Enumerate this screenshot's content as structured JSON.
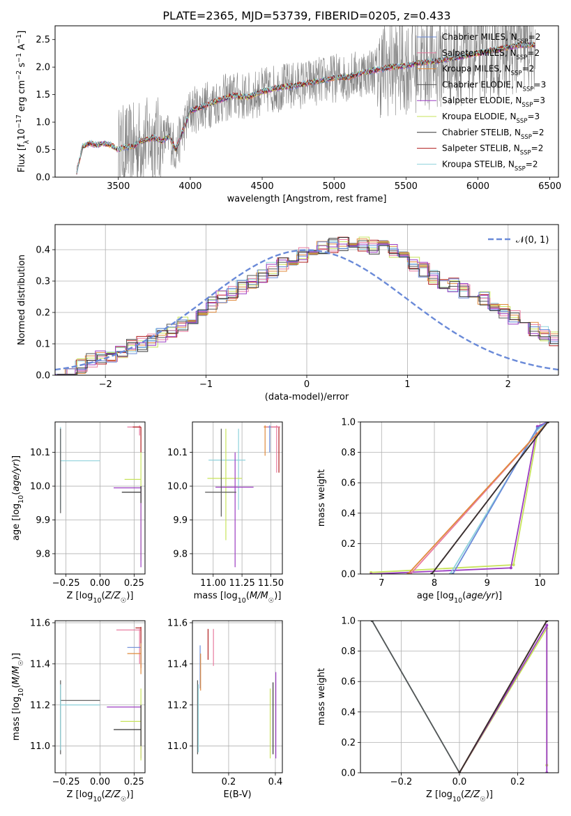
{
  "figure": {
    "title": "PLATE=2365, MJD=53739, FIBERID=0205, z=0.433",
    "colors": {
      "blue": "#6a8ad8",
      "pink": "#e87ba0",
      "orange": "#e08a3c",
      "darkgrey": "#555555",
      "purple": "#9b3cc2",
      "lime": "#c7e35a",
      "black": "#333333",
      "red": "#b01c1c",
      "cyan": "#8fd3dc",
      "spectrum": "#7f7f7f"
    }
  },
  "chart_data": [
    {
      "id": "spectrum",
      "type": "line",
      "xlabel": "wavelength [Angstrom, rest frame]",
      "ylabel": "Flux [f_λ 10^-17 erg cm^-2 s^-1 A^-1]",
      "xlim": [
        3060,
        6560
      ],
      "ylim": [
        0,
        2.75
      ],
      "xticks": [
        "3500",
        "4000",
        "4500",
        "5000",
        "5500",
        "6000",
        "6500"
      ],
      "yticks": [
        "0.0",
        "0.5",
        "1.0",
        "1.5",
        "2.0",
        "2.5"
      ],
      "legend": [
        "Chabrier MILES, N_SSP=2",
        "Salpeter MILES, N_SSP=2",
        "Kroupa MILES, N_SSP=2",
        "Chabrier ELODIE, N_SSP=3",
        "Salpeter ELODIE, N_SSP=3",
        "Kroupa ELODIE, N_SSP=3",
        "Chabrier STELIB, N_SSP=2",
        "Salpeter STELIB, N_SSP=2",
        "Kroupa STELIB, N_SSP=2"
      ],
      "legend_placement": "upper right",
      "model_trend": {
        "x": [
          3210,
          3250,
          3300,
          3350,
          3400,
          3450,
          3500,
          3550,
          3600,
          3650,
          3700,
          3750,
          3800,
          3850,
          3900,
          3950,
          4000,
          4100,
          4200,
          4300,
          4400,
          4500,
          4600,
          4700,
          4800,
          4900,
          5000,
          5100,
          5200,
          5300,
          5400,
          5500,
          5600,
          5700,
          5800,
          5900,
          6000,
          6100,
          6200,
          6300,
          6400
        ],
        "y": [
          0.1,
          0.55,
          0.62,
          0.58,
          0.62,
          0.58,
          0.5,
          0.55,
          0.55,
          0.65,
          0.68,
          0.72,
          0.65,
          0.75,
          0.5,
          0.85,
          1.2,
          1.3,
          1.4,
          1.48,
          1.45,
          1.55,
          1.62,
          1.65,
          1.7,
          1.75,
          1.8,
          1.82,
          1.9,
          1.95,
          2.0,
          2.02,
          2.08,
          2.1,
          2.15,
          2.2,
          2.25,
          2.3,
          2.35,
          2.4,
          2.4
        ]
      }
    },
    {
      "id": "residuals",
      "type": "line",
      "xlabel": "(data-model)/error",
      "ylabel": "Normed distribution",
      "xlim": [
        -2.5,
        2.5
      ],
      "ylim": [
        0,
        0.48
      ],
      "xticks": [
        "−2",
        "−1",
        "0",
        "1",
        "2"
      ],
      "yticks": [
        "0.0",
        "0.1",
        "0.2",
        "0.3",
        "0.4"
      ],
      "legend": [
        "𝒩(0, 1)"
      ],
      "legend_placement": "upper right",
      "bin_width": 0.1,
      "histogram_profile_bins_from_minus_2_5": [
        0.015,
        0.02,
        0.03,
        0.045,
        0.055,
        0.065,
        0.08,
        0.09,
        0.1,
        0.11,
        0.125,
        0.145,
        0.16,
        0.18,
        0.2,
        0.225,
        0.245,
        0.26,
        0.28,
        0.3,
        0.315,
        0.335,
        0.355,
        0.37,
        0.385,
        0.4,
        0.41,
        0.415,
        0.42,
        0.425,
        0.42,
        0.41,
        0.405,
        0.395,
        0.375,
        0.355,
        0.335,
        0.315,
        0.3,
        0.285,
        0.27,
        0.26,
        0.245,
        0.225,
        0.205,
        0.185,
        0.165,
        0.15,
        0.13,
        0.115,
        0.1
      ]
    },
    {
      "id": "age_vs_Z",
      "type": "scatter",
      "xlabel": "Z [log10(Z/Z☉)]",
      "ylabel": "age  [log10(age/yr)]",
      "xlim": [
        -0.33,
        0.33
      ],
      "ylim": [
        9.74,
        10.19
      ],
      "xticks": [
        "−0.25",
        "0.00",
        "0.25"
      ],
      "yticks": [
        "9.8",
        "9.9",
        "10.0",
        "10.1"
      ],
      "bars": [
        {
          "c": "cyan",
          "x": [
            -0.29,
            0.0
          ],
          "y": 10.075,
          "yerr": [
            9.93,
            10.175
          ],
          "xat": -0.29
        },
        {
          "c": "darkgrey",
          "x": [
            -0.29,
            -0.29
          ],
          "y": 10.0,
          "yerr": [
            9.92,
            10.17
          ],
          "xat": -0.29
        },
        {
          "c": "pink",
          "x": [
            0.2,
            0.3
          ],
          "y": 10.175,
          "yerr": [
            10.15,
            10.18
          ],
          "xat": 0.29
        },
        {
          "c": "red",
          "x": [
            0.24,
            0.3
          ],
          "y": 10.175,
          "yerr": [
            10.1,
            10.175
          ],
          "xat": 0.3
        },
        {
          "c": "lime",
          "x": [
            0.18,
            0.3
          ],
          "y": 10.02,
          "yerr": [
            9.78,
            10.1
          ],
          "xat": 0.3
        },
        {
          "c": "purple",
          "x": [
            0.1,
            0.3
          ],
          "y": 9.995,
          "yerr": [
            9.76,
            10.0
          ],
          "xat": 0.3
        },
        {
          "c": "black",
          "x": [
            0.16,
            0.3
          ],
          "y": 9.982,
          "yerr": [
            9.95,
            10.0
          ],
          "xat": 0.3
        }
      ]
    },
    {
      "id": "age_vs_mass",
      "type": "scatter",
      "xlabel": "mass [log10(M/M☉)]",
      "ylabel": "",
      "xlim": [
        10.82,
        11.6
      ],
      "ylim": [
        9.74,
        10.19
      ],
      "xticks": [
        "11.00",
        "11.25",
        "11.50"
      ],
      "yticks": [
        "9.8",
        "9.9",
        "10.0",
        "10.1"
      ],
      "bars": [
        {
          "c": "cyan",
          "x": [
            10.96,
            11.28
          ],
          "y": 10.077,
          "yerr": [
            9.93,
            10.17
          ],
          "xat": 11.22
        },
        {
          "c": "lime",
          "x": [
            10.95,
            11.25
          ],
          "y": 10.023,
          "yerr": [
            9.84,
            10.17
          ],
          "xat": 11.11
        },
        {
          "c": "purple",
          "x": [
            11.02,
            11.35
          ],
          "y": 9.997,
          "yerr": [
            9.76,
            10.1
          ],
          "xat": 11.19
        },
        {
          "c": "darkgrey",
          "x": [
            10.93,
            11.2
          ],
          "y": 9.982,
          "yerr": [
            9.91,
            10.17
          ],
          "xat": 11.07
        },
        {
          "c": "red",
          "x": [
            11.44,
            11.58
          ],
          "y": 10.175,
          "yerr": [
            10.04,
            10.175
          ],
          "xat": 11.57
        },
        {
          "c": "pink",
          "x": [
            11.45,
            11.58
          ],
          "y": 10.175,
          "yerr": [
            10.04,
            10.18
          ],
          "xat": 11.55
        },
        {
          "c": "orange",
          "x": [
            11.44,
            11.46
          ],
          "y": 10.175,
          "yerr": [
            10.09,
            10.18
          ],
          "xat": 11.45
        },
        {
          "c": "blue",
          "x": [
            11.48,
            11.5
          ],
          "y": 10.175,
          "yerr": [
            10.1,
            10.18
          ],
          "xat": 11.49
        }
      ]
    },
    {
      "id": "weight_vs_age",
      "type": "line",
      "xlabel": "age  [log10(age/yr)]",
      "ylabel": "mass weight",
      "xlim": [
        6.6,
        10.35
      ],
      "ylim": [
        0,
        1.0
      ],
      "xticks": [
        "7",
        "8",
        "9",
        "10"
      ],
      "yticks": [
        "0.0",
        "0.2",
        "0.4",
        "0.6",
        "0.8",
        "1.0"
      ],
      "series": [
        {
          "c": "lime",
          "x": [
            6.8,
            9.5,
            9.95,
            10.15
          ],
          "y": [
            0.01,
            0.06,
            0.92,
            1.0
          ]
        },
        {
          "c": "purple",
          "x": [
            6.8,
            9.45,
            9.95,
            10.15
          ],
          "y": [
            0.0,
            0.04,
            0.97,
            1.0
          ]
        },
        {
          "c": "cyan",
          "x": [
            8.3,
            9.95,
            10.15
          ],
          "y": [
            0.0,
            0.95,
            1.0
          ]
        },
        {
          "c": "blue",
          "x": [
            8.35,
            9.95,
            10.15
          ],
          "y": [
            0.0,
            0.96,
            1.0
          ]
        },
        {
          "c": "pink",
          "x": [
            7.55,
            10.15
          ],
          "y": [
            0.0,
            1.0
          ]
        },
        {
          "c": "orange",
          "x": [
            7.5,
            10.15
          ],
          "y": [
            0.0,
            1.0
          ]
        },
        {
          "c": "red",
          "x": [
            7.95,
            10.15
          ],
          "y": [
            0.0,
            1.0
          ]
        },
        {
          "c": "black",
          "x": [
            7.95,
            10.15
          ],
          "y": [
            0.0,
            1.0
          ]
        }
      ]
    },
    {
      "id": "mass_vs_Z",
      "type": "scatter",
      "xlabel": "Z [log10(Z/Z☉)]",
      "ylabel": "mass [log10(M/M☉)]",
      "xlim": [
        -0.33,
        0.33
      ],
      "ylim": [
        10.87,
        11.61
      ],
      "xticks": [
        "−0.25",
        "0.00",
        "0.25"
      ],
      "yticks": [
        "11.0",
        "11.2",
        "11.4",
        "11.6"
      ],
      "bars": [
        {
          "c": "darkgrey",
          "x": [
            -0.29,
            0.0
          ],
          "y": 11.222,
          "yerr": [
            10.96,
            11.32
          ],
          "xat": -0.29
        },
        {
          "c": "cyan",
          "x": [
            -0.29,
            0.0
          ],
          "y": 11.2,
          "yerr": [
            10.98,
            11.3
          ],
          "xat": -0.29
        },
        {
          "c": "pink",
          "x": [
            0.12,
            0.3
          ],
          "y": 11.565,
          "yerr": [
            11.4,
            11.57
          ],
          "xat": 0.29
        },
        {
          "c": "red",
          "x": [
            0.26,
            0.3
          ],
          "y": 11.575,
          "yerr": [
            11.38,
            11.58
          ],
          "xat": 0.3
        },
        {
          "c": "blue",
          "x": [
            0.2,
            0.3
          ],
          "y": 11.48,
          "yerr": [
            11.4,
            11.5
          ],
          "xat": 0.3
        },
        {
          "c": "orange",
          "x": [
            0.2,
            0.3
          ],
          "y": 11.45,
          "yerr": [
            11.35,
            11.5
          ],
          "xat": 0.3
        },
        {
          "c": "purple",
          "x": [
            0.05,
            0.3
          ],
          "y": 11.19,
          "yerr": [
            10.94,
            11.2
          ],
          "xat": 0.3
        },
        {
          "c": "lime",
          "x": [
            0.15,
            0.3
          ],
          "y": 11.12,
          "yerr": [
            10.93,
            11.28
          ],
          "xat": 0.3
        },
        {
          "c": "black",
          "x": [
            0.1,
            0.3
          ],
          "y": 11.08,
          "yerr": [
            11.0,
            11.2
          ],
          "xat": 0.3
        }
      ]
    },
    {
      "id": "mass_vs_ebv",
      "type": "scatter",
      "xlabel": "E(B-V)",
      "ylabel": "",
      "xlim": [
        0.045,
        0.43
      ],
      "ylim": [
        10.87,
        11.61
      ],
      "xticks": [
        "0.2",
        "0.4"
      ],
      "yticks": [
        "11.0",
        "11.2",
        "11.4",
        "11.6"
      ],
      "bars": [
        {
          "c": "darkgrey",
          "x": 0.067,
          "yerr": [
            10.96,
            11.32
          ]
        },
        {
          "c": "cyan",
          "x": 0.07,
          "yerr": [
            10.97,
            11.3
          ]
        },
        {
          "c": "blue",
          "x": 0.078,
          "yerr": [
            11.28,
            11.49
          ]
        },
        {
          "c": "orange",
          "x": 0.08,
          "yerr": [
            11.27,
            11.45
          ]
        },
        {
          "c": "red",
          "x": 0.112,
          "yerr": [
            11.42,
            11.57
          ]
        },
        {
          "c": "pink",
          "x": 0.135,
          "yerr": [
            11.39,
            11.57
          ]
        },
        {
          "c": "lime",
          "x": 0.378,
          "yerr": [
            10.94,
            11.28
          ]
        },
        {
          "c": "black",
          "x": 0.39,
          "yerr": [
            10.96,
            11.31
          ]
        },
        {
          "c": "purple",
          "x": 0.402,
          "yerr": [
            10.94,
            11.36
          ]
        }
      ]
    },
    {
      "id": "weight_vs_Z",
      "type": "line",
      "xlabel": "Z [log10(Z/Z☉)]",
      "ylabel": "mass weight",
      "xlim": [
        -0.34,
        0.34
      ],
      "ylim": [
        0,
        1.0
      ],
      "xticks": [
        "−0.2",
        "0.0",
        "0.2"
      ],
      "yticks": [
        "0.0",
        "0.2",
        "0.4",
        "0.6",
        "0.8",
        "1.0"
      ],
      "series": [
        {
          "c": "cyan",
          "x": [
            -0.3,
            0.0
          ],
          "y": [
            1.0,
            0.0
          ]
        },
        {
          "c": "darkgrey",
          "x": [
            -0.3,
            0.0
          ],
          "y": [
            1.0,
            0.0
          ]
        },
        {
          "c": "lime",
          "x": [
            0.0,
            0.3,
            0.3
          ],
          "y": [
            0.0,
            0.95,
            0.05
          ]
        },
        {
          "c": "purple",
          "x": [
            0.0,
            0.3,
            0.3
          ],
          "y": [
            0.0,
            0.97,
            0.0
          ]
        },
        {
          "c": "pink",
          "x": [
            0.0,
            0.3
          ],
          "y": [
            0.0,
            1.0
          ]
        },
        {
          "c": "orange",
          "x": [
            0.0,
            0.3
          ],
          "y": [
            0.0,
            1.0
          ]
        },
        {
          "c": "red",
          "x": [
            0.0,
            0.3
          ],
          "y": [
            0.0,
            1.0
          ]
        },
        {
          "c": "black",
          "x": [
            0.0,
            0.3
          ],
          "y": [
            0.0,
            1.0
          ]
        }
      ]
    }
  ]
}
